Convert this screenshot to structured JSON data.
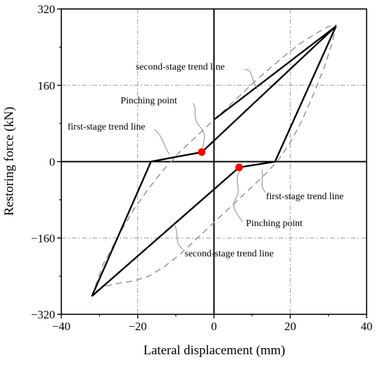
{
  "chart_data": {
    "type": "line",
    "xlabel": "Lateral displacement (mm)",
    "ylabel": "Restoring force (kN)",
    "xlim": [
      -40,
      40
    ],
    "ylim": [
      -320,
      320
    ],
    "xticks": [
      -40,
      -20,
      0,
      20,
      40
    ],
    "yticks": [
      -320,
      -160,
      0,
      160,
      320
    ],
    "xtick_labels": [
      "−40",
      "−20",
      "0",
      "20",
      "40"
    ],
    "ytick_labels": [
      "−320",
      "−160",
      "0",
      "160",
      "320"
    ],
    "grid": "dash-dot at -20, 20 and -160, 160",
    "series": [
      {
        "style": "solid black polyline",
        "x": [
          -32,
          -16.5,
          -3.2,
          32,
          16,
          6.6,
          -32
        ],
        "y": [
          -282,
          0,
          20,
          284,
          0,
          -12,
          -282
        ]
      },
      {
        "style": "solid black segment",
        "x": [
          0,
          32
        ],
        "y": [
          88,
          284
        ]
      },
      {
        "style": "gray dashed envelope",
        "x": [
          -32,
          -29,
          -25,
          -21,
          -17,
          -13,
          -9,
          -5,
          -1,
          3,
          7,
          11,
          15,
          19,
          23,
          27,
          30,
          32,
          31,
          29,
          26,
          23,
          20,
          17,
          14,
          11,
          7,
          3,
          -1,
          -5,
          -9,
          -13,
          -17,
          -21,
          -25,
          -29,
          -31,
          -32
        ],
        "y": [
          -282,
          -215,
          -155,
          -100,
          -55,
          -15,
          20,
          50,
          80,
          110,
          140,
          170,
          198,
          225,
          250,
          270,
          283,
          287,
          250,
          200,
          140,
          85,
          40,
          5,
          -22,
          -45,
          -75,
          -105,
          -135,
          -165,
          -195,
          -220,
          -240,
          -250,
          -255,
          -262,
          -272,
          -282
        ]
      }
    ],
    "points": [
      {
        "x": -3.2,
        "y": 20,
        "color": "#ff0000"
      },
      {
        "x": 6.6,
        "y": -12,
        "color": "#ff0000"
      }
    ],
    "annotations": [
      {
        "text": "second-stage trend line"
      },
      {
        "text": "Pinching point"
      },
      {
        "text": "first-stage trend line"
      },
      {
        "text": "first-stage trend line"
      },
      {
        "text": "Pinching point"
      },
      {
        "text": "second-stage trend line"
      }
    ]
  }
}
